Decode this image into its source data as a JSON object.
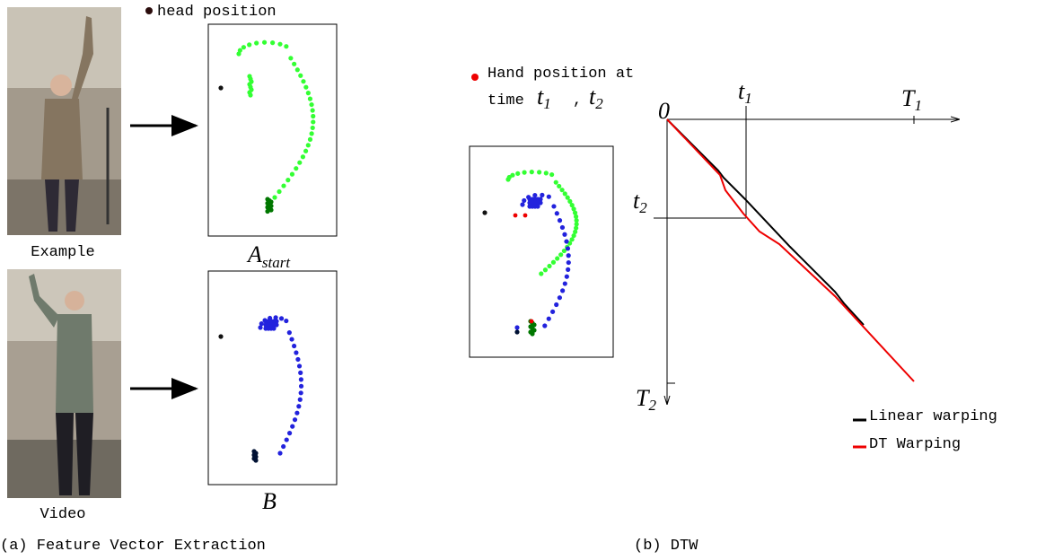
{
  "left": {
    "legend": "head position",
    "example_label": "Example",
    "video_label": "Video",
    "a_label": {
      "base": "A",
      "sub": "start"
    },
    "b_label": "B",
    "caption": "(a) Feature Vector Extraction"
  },
  "right": {
    "legend_line1": "Hand position at",
    "legend_time": "time",
    "legend_t1": {
      "base": "t",
      "sub": "1"
    },
    "legend_sep": ",",
    "legend_t2": {
      "base": "t",
      "sub": "2"
    },
    "origin": "0",
    "t1": {
      "base": "t",
      "sub": "1"
    },
    "T1": {
      "base": "T",
      "sub": "1"
    },
    "t2": {
      "base": "t",
      "sub": "2"
    },
    "T2": {
      "base": "T",
      "sub": "2"
    },
    "linear": "Linear warping",
    "dt": "DT Warping",
    "caption": "(b) DTW"
  }
}
